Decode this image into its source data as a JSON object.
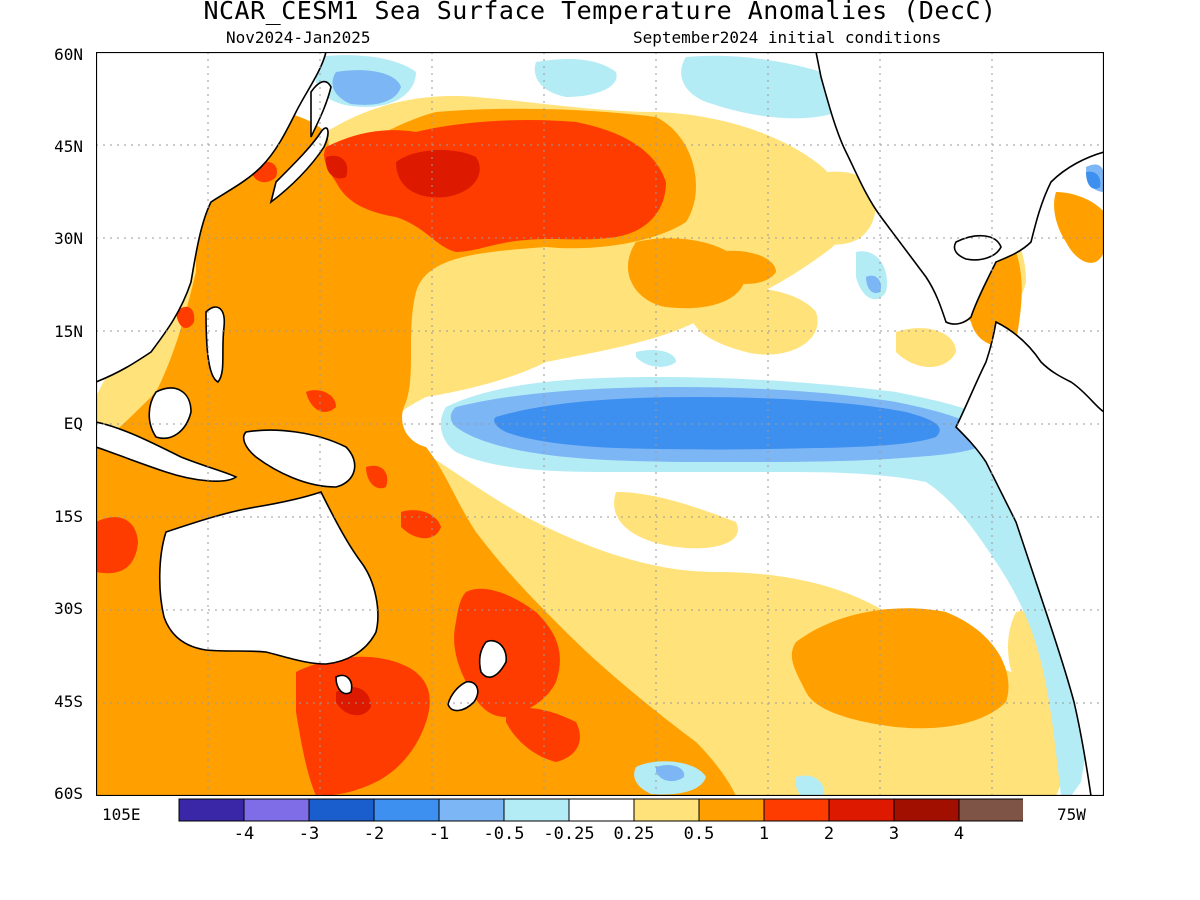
{
  "title": "NCAR_CESM1 Sea Surface Temperature Anomalies (DecC)",
  "subtitle_left": "Nov2024-Jan2025",
  "subtitle_right": "September2024 initial conditions",
  "lat_ticks": [
    "60N",
    "45N",
    "30N",
    "15N",
    "EQ",
    "15S",
    "30S",
    "45S",
    "60S"
  ],
  "lon_labels": {
    "left": "105E",
    "right": "75W"
  },
  "colorbar": {
    "colors": [
      "#3a27a8",
      "#7e6de6",
      "#1a5dcc",
      "#3d8ff0",
      "#7db6f4",
      "#b4ecf6",
      "#ffffff",
      "#ffe27a",
      "#ffa000",
      "#ff3c00",
      "#dd1a00",
      "#a00f00",
      "#7d5446"
    ],
    "labels": [
      "-4",
      "-3",
      "-2",
      "-1",
      "-0.5",
      "-0.25",
      "0.25",
      "0.5",
      "1",
      "2",
      "3",
      "4"
    ]
  }
}
